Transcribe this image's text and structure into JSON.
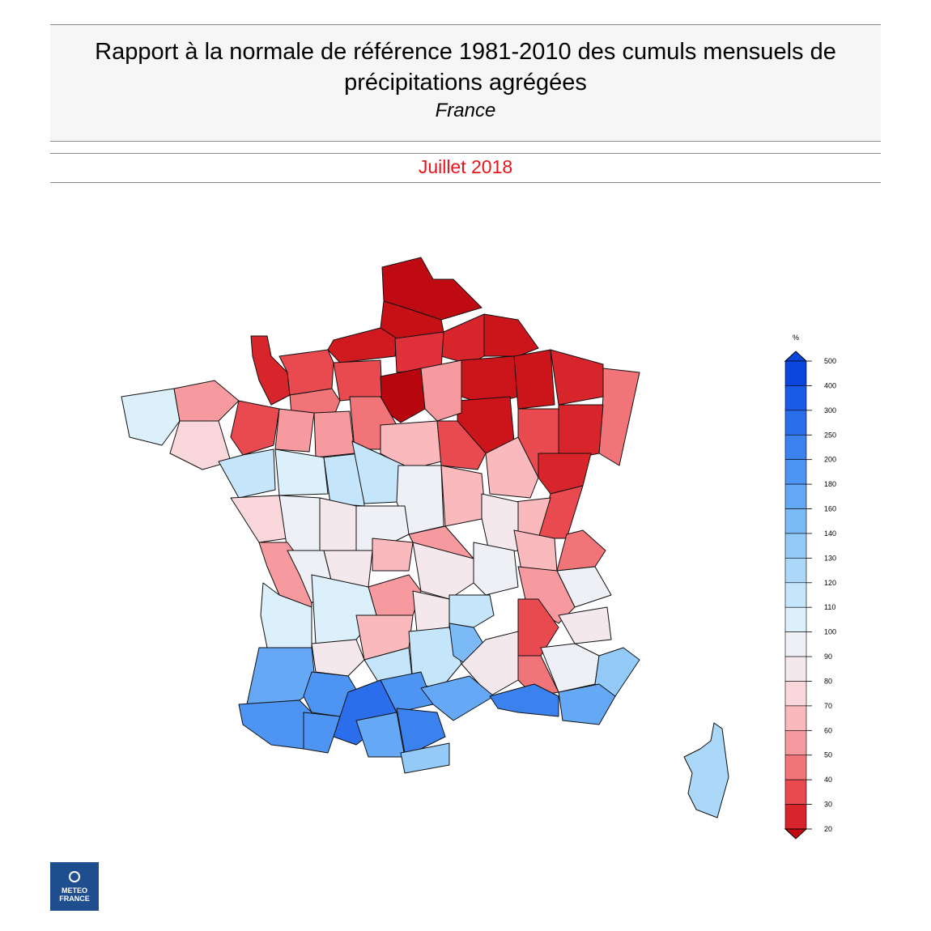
{
  "header": {
    "title": "Rapport à la normale de référence 1981-2010 des cumuls mensuels de précipitations agrégées",
    "region": "France"
  },
  "period": "Juillet 2018",
  "legend": {
    "unit": "%",
    "ticks": [
      "500",
      "400",
      "300",
      "250",
      "200",
      "180",
      "160",
      "140",
      "130",
      "120",
      "110",
      "100",
      "90",
      "80",
      "70",
      "60",
      "50",
      "40",
      "30",
      "20"
    ],
    "colors": [
      "#0a46dc",
      "#1a5ae6",
      "#2a6eeb",
      "#3c82ef",
      "#4e94f2",
      "#65a8f5",
      "#7cbaf7",
      "#93caf8",
      "#abd8f9",
      "#c5e5fa",
      "#dcf0fb",
      "#eef0f5",
      "#f4e8ec",
      "#fad7db",
      "#f9b9bd",
      "#f69a9f",
      "#f17478",
      "#e84a50",
      "#d8252b",
      "#c00a12"
    ]
  },
  "logo": {
    "line1": "METEO",
    "line2": "FRANCE"
  }
}
